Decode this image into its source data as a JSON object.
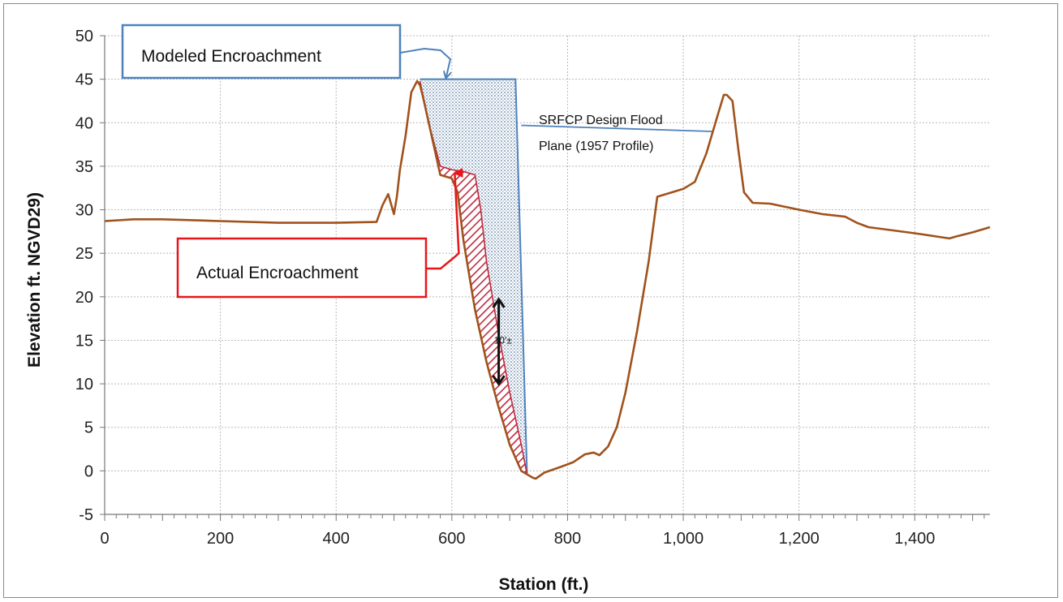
{
  "chart_data": {
    "type": "line",
    "title": "",
    "xlabel": "Station (ft.)",
    "ylabel": "Elevation ft. NGVD29)",
    "xlim": [
      0,
      1530
    ],
    "ylim": [
      -5,
      50
    ],
    "x_ticks": [
      0,
      200,
      400,
      600,
      800,
      1000,
      1200,
      1400
    ],
    "x_tick_labels": [
      "0",
      "200",
      "400",
      "600",
      "800",
      "1,000",
      "1,200",
      "1,400"
    ],
    "y_ticks": [
      -5,
      0,
      5,
      10,
      15,
      20,
      25,
      30,
      35,
      40,
      45,
      50
    ],
    "y_tick_labels": [
      "-5",
      "0",
      "5",
      "10",
      "15",
      "20",
      "25",
      "30",
      "35",
      "40",
      "45",
      "50"
    ],
    "grid": true,
    "colors": {
      "profile": "#a0521c",
      "modeled": "#4f81bd",
      "actual": "#e8161b",
      "modeled_fill": "#c4d3e3",
      "actual_hatch": "#c0283e",
      "frame": "#8a8a8a"
    },
    "series": [
      {
        "x": [
          0,
          50,
          100,
          200,
          300,
          400,
          470,
          480,
          490,
          500,
          505,
          510,
          520,
          530,
          540,
          545,
          550,
          565,
          580,
          590,
          600,
          610,
          620,
          640,
          660,
          680,
          700,
          720,
          730,
          740,
          745,
          760,
          790,
          810,
          830,
          845,
          855,
          870,
          885,
          900,
          920,
          940,
          955,
          980,
          1000,
          1020,
          1040,
          1060,
          1070,
          1075,
          1085,
          1095,
          1105,
          1120,
          1150,
          1200,
          1240,
          1280,
          1300,
          1320,
          1400,
          1460,
          1470,
          1500,
          1530
        ],
        "y": [
          28.7,
          28.9,
          28.9,
          28.7,
          28.5,
          28.5,
          28.6,
          30.5,
          31.8,
          29.5,
          31.5,
          34.5,
          38.5,
          43.5,
          44.8,
          44.3,
          43.0,
          38.5,
          34.0,
          33.8,
          33.6,
          32.0,
          26.5,
          18.5,
          12.5,
          7.5,
          3.0,
          0.0,
          -0.4,
          -0.8,
          -0.9,
          -0.2,
          0.5,
          1.0,
          1.9,
          2.1,
          1.8,
          2.8,
          5.0,
          9.0,
          16.0,
          24.0,
          31.5,
          32.0,
          32.4,
          33.2,
          36.5,
          41.0,
          43.2,
          43.2,
          42.5,
          37.0,
          32.0,
          30.8,
          30.7,
          30.0,
          29.5,
          29.2,
          28.5,
          28.0,
          27.3,
          26.7,
          26.9,
          27.4,
          28.0
        ]
      },
      {
        "x": [
          545,
          710,
          730
        ],
        "y": [
          45,
          45,
          -0.4
        ]
      },
      {
        "x": [
          545,
          560,
          580,
          600,
          620,
          640,
          650,
          660,
          670,
          680,
          700,
          720,
          730
        ],
        "y": [
          44.8,
          40.0,
          35.0,
          34.6,
          34.4,
          34.0,
          30.0,
          24.0,
          20.0,
          16.0,
          9.0,
          3.0,
          -0.4
        ]
      }
    ],
    "annotations": [
      {
        "text": "Modeled Encroachment"
      },
      {
        "text": "Actual Encroachment"
      },
      {
        "text": "SRFCP Design Flood",
        "text2": "Plane (1957 Profile)"
      },
      {
        "text": "10'±"
      }
    ]
  }
}
